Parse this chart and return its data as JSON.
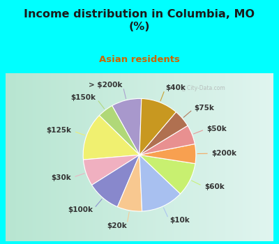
{
  "title": "Income distribution in Columbia, MO\n(%)",
  "subtitle": "Asian residents",
  "title_color": "#1a1a1a",
  "subtitle_color": "#cc6600",
  "bg_color": "#00ffff",
  "chart_bg_left": "#b8e8d0",
  "chart_bg_right": "#e8f8f0",
  "labels": [
    "> $200k",
    "$150k",
    "$125k",
    "$30k",
    "$100k",
    "$20k",
    "$10k",
    "$60k",
    "$200k",
    "$50k",
    "$75k",
    "$40k"
  ],
  "values": [
    8.5,
    4.5,
    13.5,
    7.5,
    9.5,
    7.0,
    12.0,
    9.5,
    5.5,
    5.5,
    5.0,
    10.5
  ],
  "colors": [
    "#a898cc",
    "#b0d878",
    "#f0f070",
    "#f0b0c0",
    "#8888cc",
    "#f8c890",
    "#a8c0f0",
    "#c8f070",
    "#f8a050",
    "#e89090",
    "#b07050",
    "#c89820"
  ],
  "wedge_edge_color": "#ffffff",
  "label_color": "#333333",
  "label_fontsize": 7.5,
  "startangle": 88,
  "watermark": "City-Data.com"
}
